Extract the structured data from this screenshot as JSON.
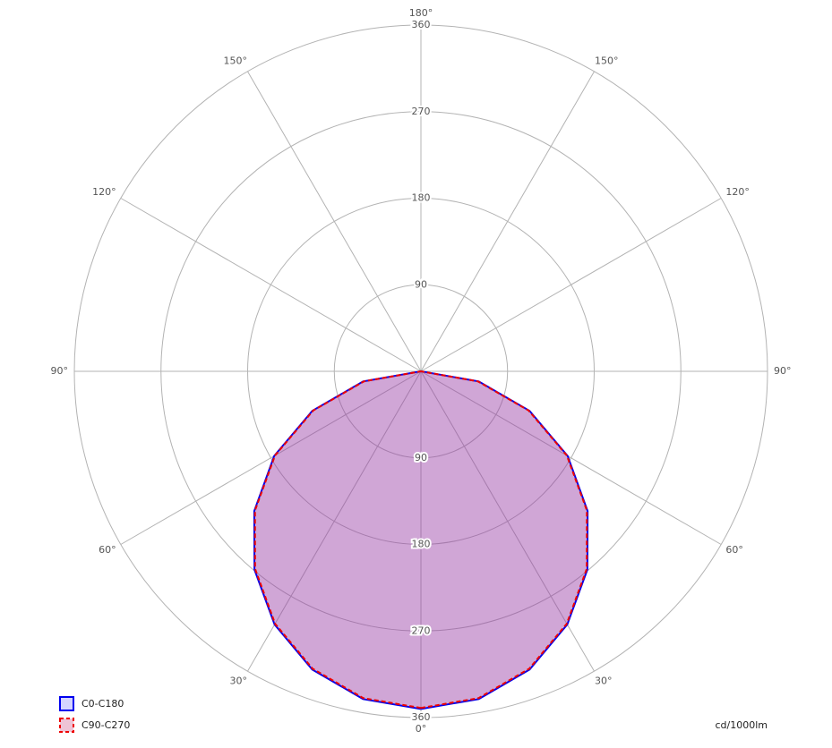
{
  "chart_data": {
    "type": "polar",
    "unit": "cd/1000lm",
    "rlim": [
      0,
      360
    ],
    "rticks": [
      90,
      180,
      270,
      360
    ],
    "angle_ticks": [
      {
        "value": 0,
        "label": "0°"
      },
      {
        "value": 30,
        "label": "30°"
      },
      {
        "value": 60,
        "label": "60°"
      },
      {
        "value": 90,
        "label": "90°"
      },
      {
        "value": 120,
        "label": "120°"
      },
      {
        "value": 150,
        "label": "150°"
      },
      {
        "value": 180,
        "label": "180°"
      }
    ],
    "x": [
      0,
      10,
      20,
      30,
      40,
      50,
      60,
      70,
      80,
      90
    ],
    "series": [
      {
        "name": "C0-C180",
        "color": "#0000ee",
        "fill": "rgba(60,60,255,0.22)",
        "dashed": false,
        "values": [
          351,
          346,
          330,
          304,
          269,
          226,
          176,
          120,
          61,
          0
        ]
      },
      {
        "name": "C90-C270",
        "color": "#ee0000",
        "fill": "rgba(200,60,120,0.3)",
        "dashed": true,
        "values": [
          350,
          345,
          329,
          303,
          268,
          225,
          175,
          119,
          60,
          0
        ]
      }
    ]
  }
}
